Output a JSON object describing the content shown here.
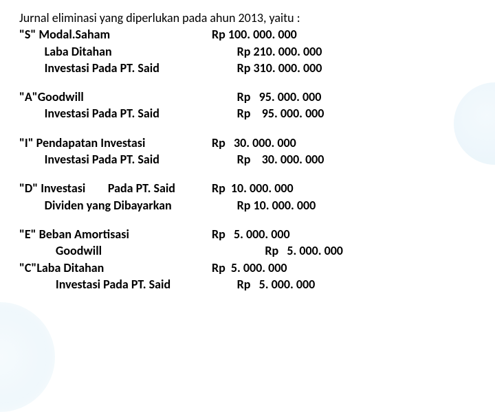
{
  "title": "Jurnal eliminasi yang diperlukan pada ahun 2013, yaitu :",
  "blocks": [
    {
      "rows": [
        {
          "label": "\"S\" Modal.Saham",
          "value": "Rp 100. 000. 000"
        },
        {
          "label": "         Laba Ditahan",
          "value": "         Rp 210. 000. 000"
        },
        {
          "label": "         Investasi Pada PT. Said",
          "value": "         Rp 310. 000. 000"
        }
      ]
    },
    {
      "rows": [
        {
          "label": "\"A\"Goodwill",
          "value": "         Rp   95. 000. 000"
        },
        {
          "label": "         Investasi Pada PT. Said",
          "value": "         Rp    95. 000. 000"
        }
      ]
    },
    {
      "rows": [
        {
          "label": "\"I\" Pendapatan Investasi",
          "value": "Rp   30. 000. 000"
        },
        {
          "label": "         Investasi Pada PT. Said",
          "value": "         Rp    30. 000. 000"
        }
      ]
    },
    {
      "rows": [
        {
          "label": "\"D\" Investasi        Pada PT. Said",
          "value": "Rp  10. 000. 000"
        },
        {
          "label": "         Dividen yang Dibayarkan",
          "value": "         Rp 10. 000. 000"
        }
      ]
    },
    {
      "rows": [
        {
          "label": "\"E\" Beban Amortisasi",
          "value": "Rp   5. 000. 000"
        },
        {
          "label": "             Goodwill",
          "value": "                   Rp   5. 000. 000"
        },
        {
          "label": "\"C\"Laba Ditahan",
          "value": "Rp  5. 000. 000"
        },
        {
          "label": "             Investasi Pada PT. Said",
          "value": "         Rp   5. 000. 000"
        }
      ]
    }
  ]
}
